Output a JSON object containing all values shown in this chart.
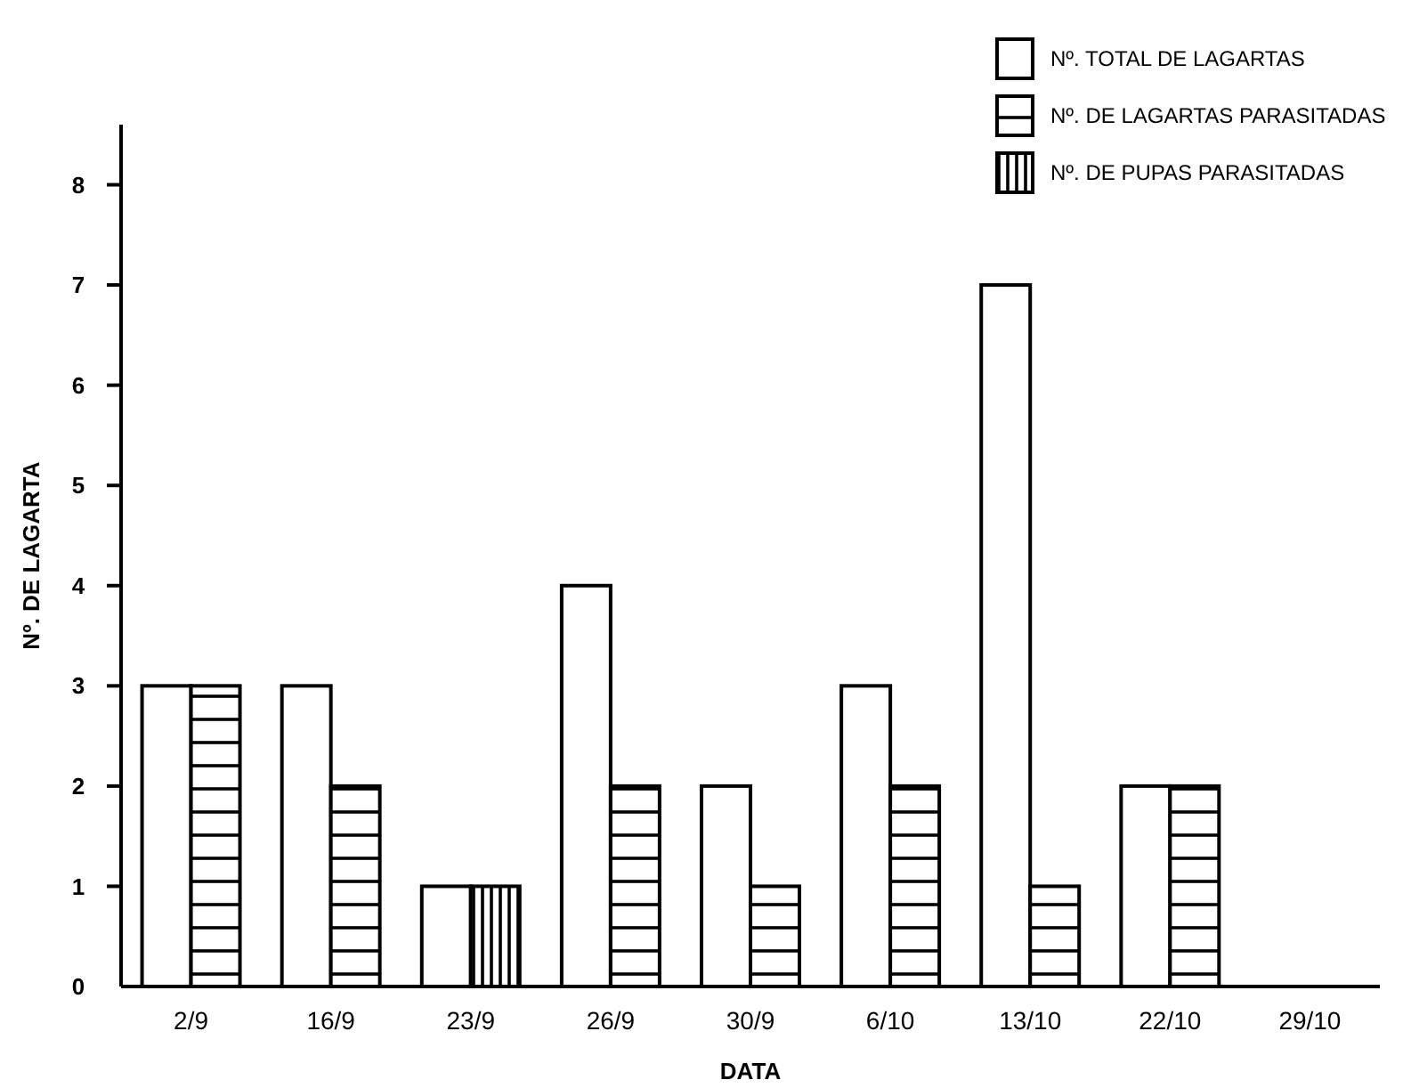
{
  "chart_data": {
    "type": "bar",
    "xlabel": "DATA",
    "ylabel": "Nº. DE LAGARTA",
    "categories": [
      "2/9",
      "16/9",
      "23/9",
      "26/9",
      "30/9",
      "6/10",
      "13/10",
      "22/10",
      "29/10"
    ],
    "series": [
      {
        "name": "Nº. TOTAL DE LAGARTAS",
        "color": "#ffffff",
        "values": [
          3,
          3,
          1,
          4,
          2,
          3,
          7,
          2,
          null
        ]
      },
      {
        "name": "Nº. DE LAGARTAS PARASITADAS",
        "color": "#000000",
        "values": [
          3,
          2,
          null,
          2,
          1,
          2,
          1,
          2,
          null
        ]
      },
      {
        "name": "Nº. DE PUPAS PARASITADAS",
        "color": "#000000",
        "values": [
          null,
          null,
          1,
          null,
          null,
          null,
          null,
          null,
          null
        ]
      }
    ],
    "ylim": [
      0,
      8.6
    ],
    "yticks": [
      {
        "value": 0,
        "label": "0"
      },
      1,
      2,
      3,
      4,
      5,
      6,
      7,
      8
    ],
    "grid": false,
    "legend": "top right"
  }
}
